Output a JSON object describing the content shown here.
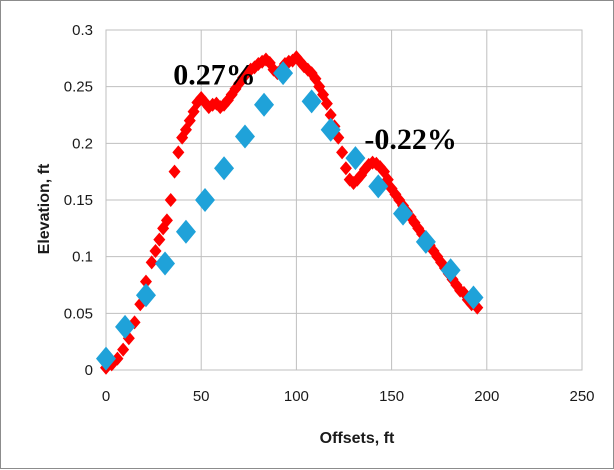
{
  "chart_data": {
    "type": "scatter",
    "title": "",
    "xlabel": "Offsets, ft",
    "ylabel": "Elevation, ft",
    "xlim": [
      0,
      250
    ],
    "ylim": [
      0,
      0.3
    ],
    "x_ticks": [
      "0",
      "50",
      "100",
      "150",
      "200",
      "250"
    ],
    "y_ticks": [
      "0",
      "0.05",
      "0.1",
      "0.15",
      "0.2",
      "0.25",
      "0.3"
    ],
    "grid": true,
    "legend": "none",
    "annotations": [
      {
        "text": "0.27%",
        "x": 57,
        "y": 0.252
      },
      {
        "text": "-0.22%",
        "x": 160,
        "y": 0.195
      }
    ],
    "series": [
      {
        "color": "#ff0000",
        "marker": "diamond",
        "points": [
          [
            0,
            0.002
          ],
          [
            3,
            0.005
          ],
          [
            6,
            0.01
          ],
          [
            9,
            0.018
          ],
          [
            12,
            0.028
          ],
          [
            15,
            0.042
          ],
          [
            18,
            0.058
          ],
          [
            21,
            0.078
          ],
          [
            24,
            0.095
          ],
          [
            26,
            0.105
          ],
          [
            28,
            0.115
          ],
          [
            30,
            0.125
          ],
          [
            32,
            0.132
          ],
          [
            34,
            0.15
          ],
          [
            36,
            0.175
          ],
          [
            38,
            0.192
          ],
          [
            40,
            0.205
          ],
          [
            42,
            0.212
          ],
          [
            44,
            0.22
          ],
          [
            46,
            0.228
          ],
          [
            48,
            0.236
          ],
          [
            50,
            0.24
          ],
          [
            52,
            0.236
          ],
          [
            54,
            0.232
          ],
          [
            56,
            0.234
          ],
          [
            58,
            0.235
          ],
          [
            60,
            0.232
          ],
          [
            62,
            0.234
          ],
          [
            64,
            0.238
          ],
          [
            66,
            0.243
          ],
          [
            68,
            0.248
          ],
          [
            70,
            0.253
          ],
          [
            72,
            0.258
          ],
          [
            74,
            0.262
          ],
          [
            76,
            0.265
          ],
          [
            78,
            0.267
          ],
          [
            80,
            0.27
          ],
          [
            82,
            0.272
          ],
          [
            84,
            0.274
          ],
          [
            86,
            0.271
          ],
          [
            88,
            0.265
          ],
          [
            90,
            0.262
          ],
          [
            92,
            0.265
          ],
          [
            94,
            0.27
          ],
          [
            96,
            0.272
          ],
          [
            98,
            0.273
          ],
          [
            100,
            0.276
          ],
          [
            102,
            0.272
          ],
          [
            104,
            0.268
          ],
          [
            106,
            0.265
          ],
          [
            108,
            0.262
          ],
          [
            110,
            0.257
          ],
          [
            112,
            0.25
          ],
          [
            114,
            0.243
          ],
          [
            116,
            0.235
          ],
          [
            118,
            0.225
          ],
          [
            120,
            0.215
          ],
          [
            122,
            0.205
          ],
          [
            124,
            0.192
          ],
          [
            126,
            0.178
          ],
          [
            128,
            0.168
          ],
          [
            130,
            0.165
          ],
          [
            132,
            0.168
          ],
          [
            134,
            0.172
          ],
          [
            136,
            0.177
          ],
          [
            138,
            0.181
          ],
          [
            140,
            0.183
          ],
          [
            142,
            0.182
          ],
          [
            144,
            0.179
          ],
          [
            146,
            0.175
          ],
          [
            148,
            0.168
          ],
          [
            150,
            0.16
          ],
          [
            152,
            0.155
          ],
          [
            154,
            0.15
          ],
          [
            156,
            0.145
          ],
          [
            158,
            0.14
          ],
          [
            160,
            0.135
          ],
          [
            162,
            0.13
          ],
          [
            164,
            0.125
          ],
          [
            166,
            0.12
          ],
          [
            168,
            0.115
          ],
          [
            170,
            0.11
          ],
          [
            172,
            0.105
          ],
          [
            174,
            0.1
          ],
          [
            176,
            0.095
          ],
          [
            178,
            0.09
          ],
          [
            180,
            0.085
          ],
          [
            182,
            0.08
          ],
          [
            184,
            0.075
          ],
          [
            186,
            0.07
          ],
          [
            188,
            0.068
          ],
          [
            190,
            0.062
          ],
          [
            192,
            0.058
          ],
          [
            195,
            0.055
          ]
        ]
      },
      {
        "color": "#1fa2d9",
        "marker": "diamond",
        "points": [
          [
            0,
            0.01
          ],
          [
            10,
            0.038
          ],
          [
            21,
            0.066
          ],
          [
            31,
            0.094
          ],
          [
            42,
            0.122
          ],
          [
            52,
            0.15
          ],
          [
            62,
            0.178
          ],
          [
            73,
            0.206
          ],
          [
            83,
            0.234
          ],
          [
            93,
            0.262
          ],
          [
            108,
            0.237
          ],
          [
            118,
            0.212
          ],
          [
            131,
            0.187
          ],
          [
            143,
            0.162
          ],
          [
            156,
            0.138
          ],
          [
            168,
            0.113
          ],
          [
            181,
            0.088
          ],
          [
            193,
            0.064
          ]
        ]
      }
    ]
  }
}
